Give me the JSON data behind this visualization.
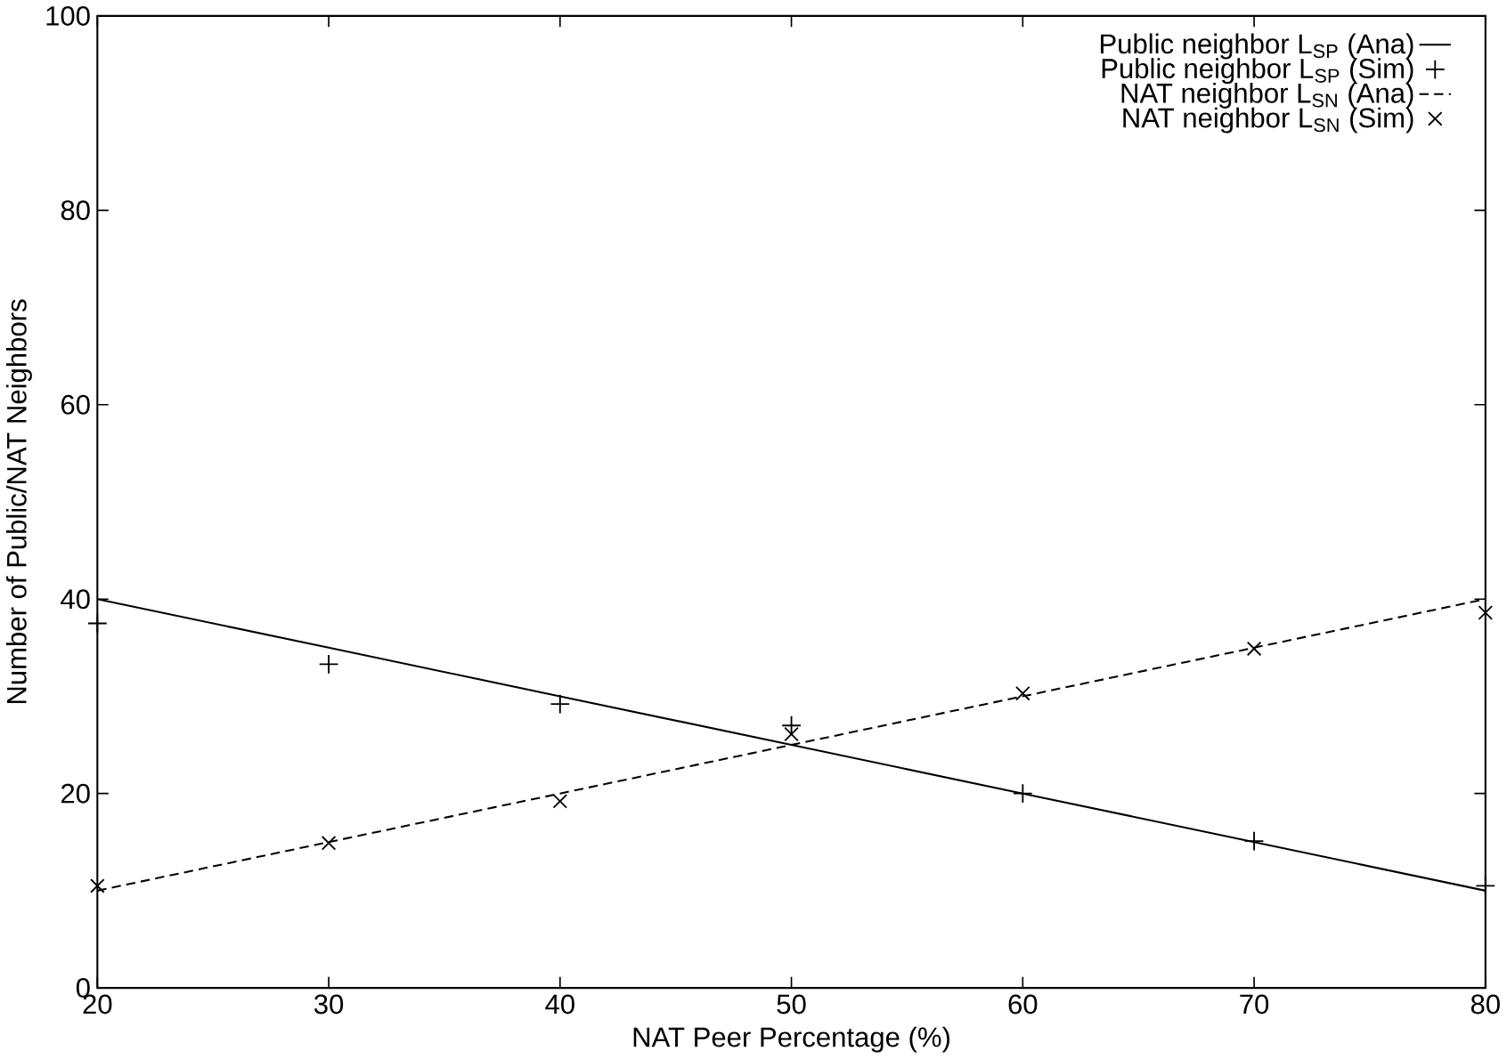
{
  "chart_data": {
    "type": "line",
    "xlabel": "NAT Peer Percentage (%)",
    "ylabel": "Number of Public/NAT Neighbors",
    "x": [
      20,
      30,
      40,
      50,
      60,
      70,
      80
    ],
    "xlim": [
      20,
      80
    ],
    "ylim": [
      0,
      100
    ],
    "xticks": [
      20,
      30,
      40,
      50,
      60,
      70,
      80
    ],
    "yticks": [
      0,
      20,
      40,
      60,
      80,
      100
    ],
    "grid": false,
    "legend": "top right",
    "series": [
      {
        "name": "Public neighbor L$_{SP}$ (Ana)",
        "line_style": "solid",
        "marker": "none",
        "color": "#000000",
        "values": [
          40,
          35,
          30,
          25,
          20,
          15,
          10
        ]
      },
      {
        "name": "Public neighbor L$_{SP}$ (Sim)",
        "type": "scatter",
        "marker": "cross",
        "color": "#000000",
        "values": [
          37.5,
          33.3,
          29.2,
          27.0,
          20.0,
          15.1,
          10.5
        ]
      },
      {
        "name": "NAT neighbor L$_{SN}$ (Ana)",
        "line_style": "dashed",
        "marker": "none",
        "color": "#000000",
        "values": [
          10,
          15,
          20,
          25,
          30,
          35,
          40
        ]
      },
      {
        "name": "NAT neighbor L$_{SN}$ (Sim)",
        "type": "scatter",
        "marker": "x",
        "color": "#000000",
        "values": [
          10.5,
          14.9,
          19.2,
          26.1,
          30.3,
          34.9,
          38.6
        ]
      }
    ]
  }
}
